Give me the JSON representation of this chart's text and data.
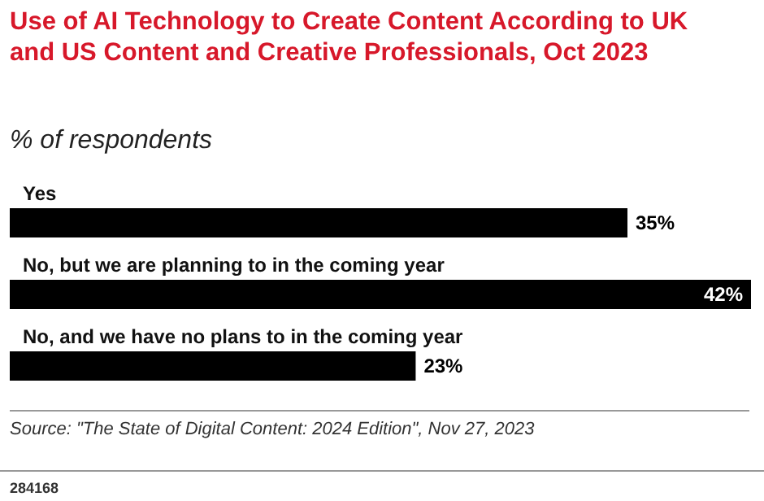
{
  "chart_data": {
    "type": "bar",
    "orientation": "horizontal",
    "title": "Use of AI Technology to Create Content According to UK and US Content and Creative Professionals, Oct 2023",
    "subtitle": "% of respondents",
    "categories": [
      "Yes",
      "No, but we are planning to in the coming year",
      "No, and we have no plans to in the coming year"
    ],
    "values": [
      35,
      42,
      23
    ],
    "value_labels": [
      "35%",
      "42%",
      "23%"
    ],
    "color": "#000000",
    "annotations": [
      "Source: \"The State of Digital Content: 2024 Edition\", Nov 27, 2023",
      "284168"
    ]
  }
}
